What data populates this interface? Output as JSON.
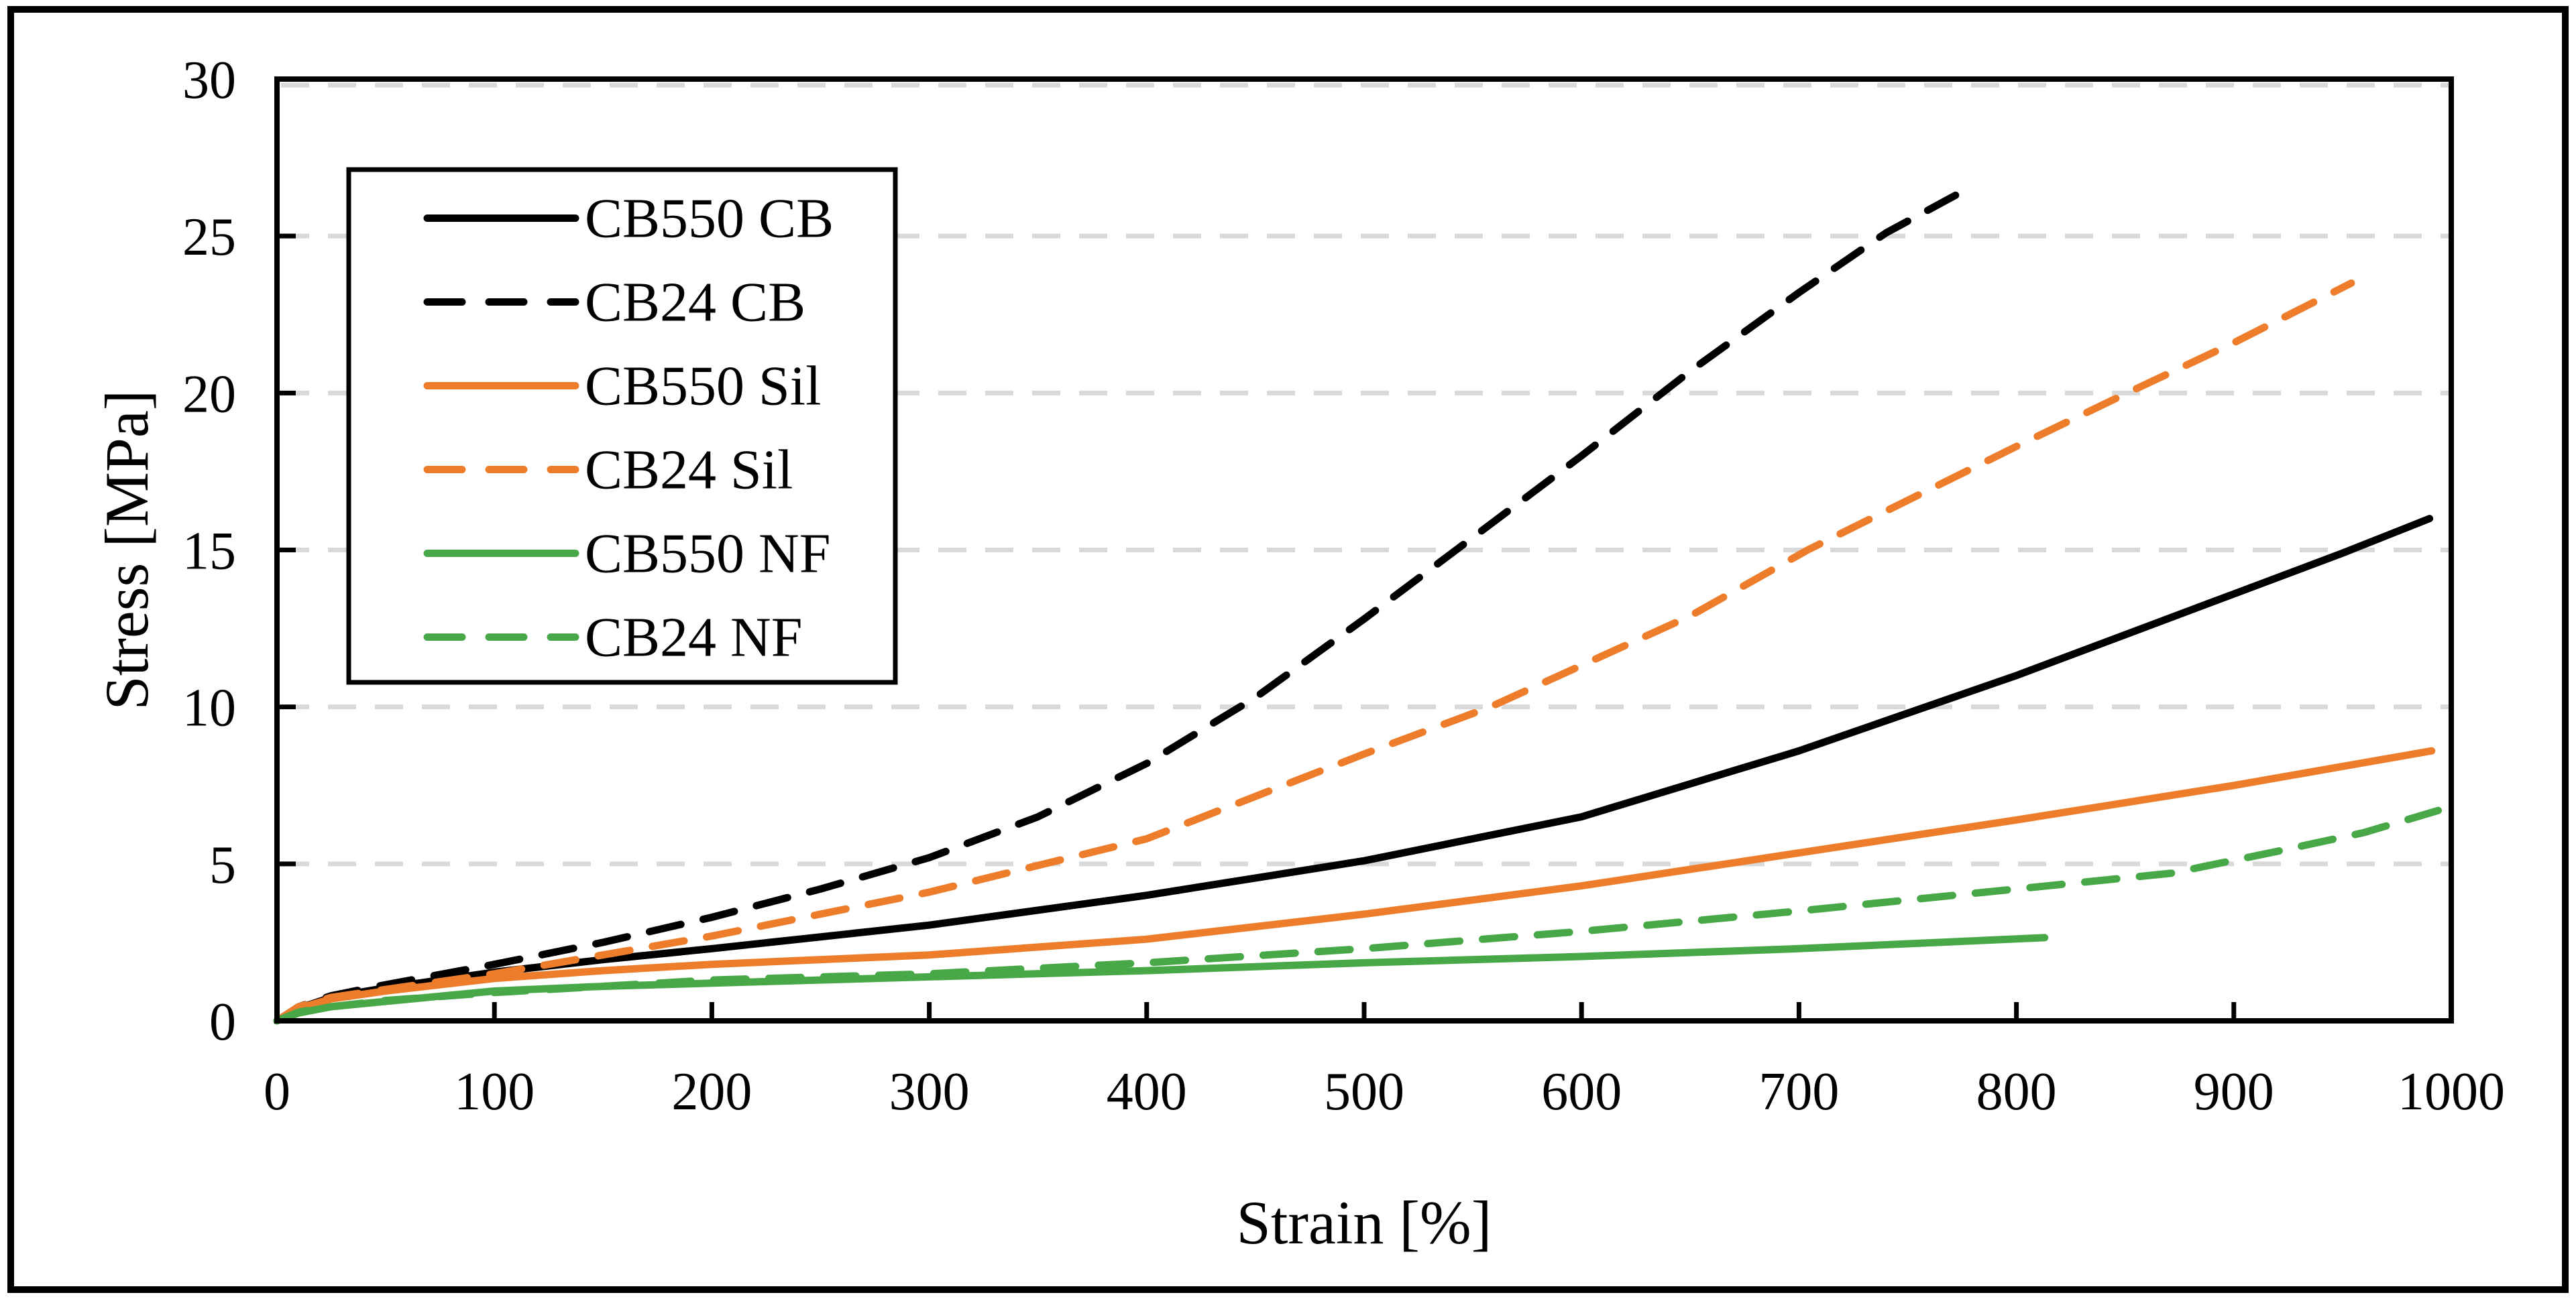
{
  "figure": {
    "kind": "stress-strain line chart",
    "background": "#ffffff",
    "outer_border_color": "#000000",
    "plot_frame_color": "#000000",
    "gridline_color": "#d9d9d9",
    "legend_text_color": "#7f7f7f",
    "tick_label_color": "#000000"
  },
  "chart_data": {
    "type": "line",
    "title": "",
    "xlabel": "Strain [%]",
    "ylabel": "Stress [MPa]",
    "xlim": [
      0,
      1000
    ],
    "ylim": [
      0,
      30
    ],
    "x_ticks": [
      0,
      100,
      200,
      300,
      400,
      500,
      600,
      700,
      800,
      900,
      1000
    ],
    "y_ticks": [
      0,
      5,
      10,
      15,
      20,
      25,
      30
    ],
    "grid": "horizontal dashed gridlines at every 5 MPa",
    "legend_position": "upper-left inside plot, boxed",
    "series": [
      {
        "name": "CB550 CB",
        "color": "#000000",
        "style": "solid",
        "points": [
          [
            0,
            0
          ],
          [
            10,
            0.4
          ],
          [
            25,
            0.75
          ],
          [
            50,
            1.05
          ],
          [
            100,
            1.55
          ],
          [
            150,
            1.95
          ],
          [
            200,
            2.3
          ],
          [
            300,
            3.05
          ],
          [
            400,
            4.0
          ],
          [
            500,
            5.1
          ],
          [
            600,
            6.5
          ],
          [
            700,
            8.6
          ],
          [
            800,
            11.0
          ],
          [
            900,
            13.6
          ],
          [
            950,
            14.9
          ],
          [
            990,
            16.0
          ]
        ]
      },
      {
        "name": "CB24 CB",
        "color": "#000000",
        "style": "dashed",
        "points": [
          [
            0,
            0
          ],
          [
            10,
            0.45
          ],
          [
            25,
            0.8
          ],
          [
            50,
            1.15
          ],
          [
            100,
            1.8
          ],
          [
            150,
            2.5
          ],
          [
            200,
            3.3
          ],
          [
            250,
            4.2
          ],
          [
            300,
            5.2
          ],
          [
            350,
            6.5
          ],
          [
            400,
            8.2
          ],
          [
            450,
            10.3
          ],
          [
            500,
            12.8
          ],
          [
            550,
            15.4
          ],
          [
            600,
            18.0
          ],
          [
            650,
            20.7
          ],
          [
            700,
            23.2
          ],
          [
            740,
            25.1
          ],
          [
            772,
            26.3
          ]
        ]
      },
      {
        "name": "CB550 Sil",
        "color": "#ed7d2b",
        "style": "solid",
        "points": [
          [
            0,
            0
          ],
          [
            10,
            0.4
          ],
          [
            25,
            0.7
          ],
          [
            50,
            0.95
          ],
          [
            100,
            1.35
          ],
          [
            150,
            1.6
          ],
          [
            200,
            1.8
          ],
          [
            300,
            2.1
          ],
          [
            400,
            2.6
          ],
          [
            500,
            3.4
          ],
          [
            600,
            4.3
          ],
          [
            700,
            5.35
          ],
          [
            800,
            6.4
          ],
          [
            900,
            7.5
          ],
          [
            991,
            8.6
          ]
        ]
      },
      {
        "name": "CB24 Sil",
        "color": "#ed7d2b",
        "style": "dashed",
        "points": [
          [
            0,
            0
          ],
          [
            10,
            0.45
          ],
          [
            25,
            0.75
          ],
          [
            50,
            1.0
          ],
          [
            100,
            1.5
          ],
          [
            150,
            2.1
          ],
          [
            200,
            2.7
          ],
          [
            300,
            4.1
          ],
          [
            400,
            5.8
          ],
          [
            500,
            8.5
          ],
          [
            558,
            10.0
          ],
          [
            650,
            12.9
          ],
          [
            704,
            15.0
          ],
          [
            800,
            18.3
          ],
          [
            851,
            20.0
          ],
          [
            900,
            21.6
          ],
          [
            954,
            23.5
          ]
        ]
      },
      {
        "name": "CB550 NF",
        "color": "#48a848",
        "style": "solid",
        "points": [
          [
            0,
            0
          ],
          [
            10,
            0.25
          ],
          [
            25,
            0.45
          ],
          [
            50,
            0.62
          ],
          [
            100,
            0.95
          ],
          [
            150,
            1.1
          ],
          [
            200,
            1.2
          ],
          [
            300,
            1.4
          ],
          [
            400,
            1.6
          ],
          [
            500,
            1.85
          ],
          [
            600,
            2.05
          ],
          [
            700,
            2.3
          ],
          [
            813,
            2.65
          ]
        ]
      },
      {
        "name": "CB24 NF",
        "color": "#48a848",
        "style": "dashed",
        "points": [
          [
            0,
            0
          ],
          [
            10,
            0.28
          ],
          [
            25,
            0.45
          ],
          [
            50,
            0.65
          ],
          [
            100,
            0.9
          ],
          [
            150,
            1.1
          ],
          [
            200,
            1.3
          ],
          [
            300,
            1.5
          ],
          [
            400,
            1.85
          ],
          [
            500,
            2.3
          ],
          [
            600,
            2.85
          ],
          [
            700,
            3.5
          ],
          [
            800,
            4.2
          ],
          [
            871,
            4.7
          ],
          [
            920,
            5.4
          ],
          [
            960,
            6.0
          ],
          [
            994,
            6.7
          ]
        ]
      }
    ]
  }
}
